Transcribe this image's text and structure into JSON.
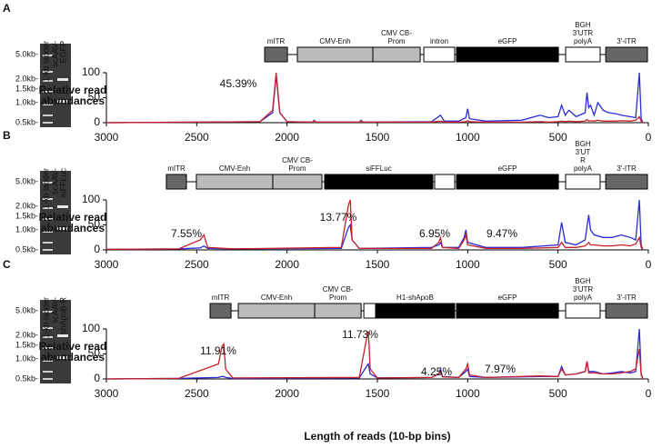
{
  "chart_data": [
    {
      "type": "line",
      "panel": "A",
      "gel": {
        "lanes": [
          [
            "1-kb ladder"
          ],
          [
            "scAAV-",
            "EGFP"
          ]
        ],
        "sizes": [
          "5.0kb-",
          "2.0kb-",
          "1.5kb-",
          "1.0kb-",
          "0.5kb-"
        ]
      },
      "construct": [
        {
          "label": [
            "mITR"
          ],
          "start": 2124,
          "end": 1998,
          "color": "#666666"
        },
        {
          "label": [
            "CMV-Enh"
          ],
          "start": 1943,
          "end": 1525,
          "color": "#bbbbbb"
        },
        {
          "label": [
            "CMV CB-",
            "Prom"
          ],
          "start": 1525,
          "end": 1263,
          "color": "#bbbbbb"
        },
        {
          "label": [
            "intron"
          ],
          "start": 1243,
          "end": 1072,
          "color": "#ffffff"
        },
        {
          "label": [
            "eGFP"
          ],
          "start": 1062,
          "end": 498,
          "color": "#000000"
        },
        {
          "label": [
            "BGH",
            "3'UTR",
            "polyA"
          ],
          "start": 458,
          "end": 267,
          "color": "#ffffff"
        },
        {
          "label": [
            "3'-ITR"
          ],
          "start": 236,
          "end": 5,
          "color": "#666666"
        }
      ],
      "ylabel": [
        "Relative read",
        "abundances"
      ],
      "annotations": [
        {
          "text": "45.39%"
        }
      ],
      "x": [
        3000,
        2500,
        2150,
        2080,
        2060,
        2040,
        2000,
        1860,
        1850,
        1840,
        1600,
        1590,
        1580,
        1200,
        1150,
        1130,
        1050,
        1010,
        1000,
        990,
        900,
        700,
        600,
        550,
        500,
        480,
        460,
        440,
        400,
        350,
        340,
        330,
        320,
        300,
        280,
        250,
        220,
        180,
        150,
        100,
        70,
        50,
        40,
        30
      ],
      "series": [
        {
          "color": "#2b2bd9",
          "values": [
            0,
            1,
            2,
            20,
            95,
            20,
            2,
            1,
            5,
            1,
            1,
            5,
            1,
            2,
            15,
            3,
            3,
            10,
            28,
            8,
            3,
            5,
            15,
            10,
            12,
            35,
            15,
            25,
            12,
            20,
            60,
            30,
            35,
            15,
            40,
            25,
            20,
            18,
            15,
            12,
            10,
            100,
            8,
            0
          ]
        },
        {
          "color": "#c8202a",
          "values": [
            0,
            1,
            2,
            25,
            100,
            20,
            2,
            1,
            4,
            1,
            1,
            4,
            1,
            1,
            3,
            1,
            1,
            2,
            4,
            2,
            1,
            1,
            2,
            1,
            2,
            3,
            2,
            3,
            2,
            3,
            6,
            3,
            4,
            3,
            5,
            3,
            3,
            3,
            4,
            3,
            5,
            12,
            3,
            0
          ]
        }
      ],
      "xlim": [
        3000,
        0
      ],
      "xticks": [
        3000,
        2500,
        2000,
        1500,
        1000,
        500,
        0
      ],
      "ylim": [
        0,
        100
      ],
      "yticks": [
        0,
        50,
        100
      ]
    },
    {
      "type": "line",
      "panel": "B",
      "gel": {
        "lanes": [
          [
            "1-kb ladder"
          ],
          [
            "scAAV-",
            "siFFLuc"
          ]
        ],
        "sizes": [
          "5.0kb-",
          "2.0kb-",
          "1.5kb-",
          "1.0kb-",
          "0.5kb-"
        ]
      },
      "construct": [
        {
          "label": [
            "mITR"
          ],
          "start": 2668,
          "end": 2557,
          "color": "#666666"
        },
        {
          "label": [
            "CMV-Enh"
          ],
          "start": 2502,
          "end": 2079,
          "color": "#bbbbbb"
        },
        {
          "label": [
            "CMV CB-",
            "Prom"
          ],
          "start": 2079,
          "end": 1807,
          "color": "#bbbbbb"
        },
        {
          "label": [
            "siFFLuc"
          ],
          "start": 1792,
          "end": 1193,
          "color": "#000000"
        },
        {
          "label": [],
          "start": 1183,
          "end": 1072,
          "color": "#ffffff"
        },
        {
          "label": [
            "eGFP"
          ],
          "start": 1062,
          "end": 498,
          "color": "#000000"
        },
        {
          "label": [
            "BGH",
            "3'UT",
            "R",
            "polyA"
          ],
          "start": 458,
          "end": 267,
          "color": "#ffffff"
        },
        {
          "label": [
            "3'-ITR"
          ],
          "start": 236,
          "end": 5,
          "color": "#666666"
        }
      ],
      "ylabel": [
        "Relative read",
        "abundances"
      ],
      "annotations": [
        {
          "text": "7.55%"
        },
        {
          "text": "13.77%"
        },
        {
          "text": "6.95%"
        },
        {
          "text": "9.47%"
        }
      ],
      "x": [
        3000,
        2600,
        2480,
        2460,
        2440,
        2300,
        1700,
        1660,
        1650,
        1640,
        1600,
        1200,
        1160,
        1150,
        1140,
        1050,
        1020,
        1010,
        1000,
        900,
        700,
        500,
        480,
        460,
        400,
        350,
        330,
        320,
        300,
        250,
        200,
        150,
        100,
        70,
        50,
        40,
        30
      ],
      "series": [
        {
          "color": "#2b2bd9",
          "values": [
            1,
            2,
            4,
            8,
            3,
            2,
            3,
            45,
            50,
            20,
            3,
            5,
            10,
            15,
            5,
            5,
            25,
            40,
            15,
            5,
            5,
            10,
            55,
            15,
            10,
            20,
            70,
            40,
            30,
            25,
            25,
            30,
            25,
            20,
            100,
            10,
            0
          ]
        },
        {
          "color": "#c8202a",
          "values": [
            1,
            2,
            20,
            30,
            5,
            2,
            5,
            90,
            100,
            20,
            3,
            3,
            15,
            25,
            5,
            3,
            20,
            30,
            10,
            3,
            3,
            5,
            15,
            5,
            5,
            8,
            15,
            10,
            10,
            8,
            8,
            10,
            8,
            12,
            25,
            5,
            0
          ]
        }
      ],
      "xlim": [
        3000,
        0
      ],
      "xticks": [
        3000,
        2500,
        2000,
        1500,
        1000,
        500,
        0
      ],
      "ylim": [
        0,
        100
      ],
      "yticks": [
        0,
        50,
        100
      ]
    },
    {
      "type": "line",
      "panel": "C",
      "gel": {
        "lanes": [
          [
            "1-kb ladder"
          ],
          [
            "scAAV-",
            "shApoB-R"
          ]
        ],
        "sizes": [
          "5.0kb-",
          "2.0kb-",
          "1.5kb-",
          "1.0kb-",
          "0.5kb-"
        ]
      },
      "construct": [
        {
          "label": [
            "mITR"
          ],
          "start": 2426,
          "end": 2310,
          "color": "#666666"
        },
        {
          "label": [
            "CMV-Enh"
          ],
          "start": 2270,
          "end": 1847,
          "color": "#bbbbbb"
        },
        {
          "label": [
            "CMV CB-",
            "Prom"
          ],
          "start": 1847,
          "end": 1590,
          "color": "#bbbbbb"
        },
        {
          "label": [],
          "start": 1575,
          "end": 1510,
          "color": "#ffffff"
        },
        {
          "label": [
            "H1-shApoB"
          ],
          "start": 1510,
          "end": 1072,
          "color": "#000000"
        },
        {
          "label": [
            "eGFP"
          ],
          "start": 1062,
          "end": 498,
          "color": "#000000"
        },
        {
          "label": [
            "BGH",
            "3'UTR",
            "polyA"
          ],
          "start": 458,
          "end": 267,
          "color": "#ffffff"
        },
        {
          "label": [
            "3'-ITR"
          ],
          "start": 236,
          "end": 5,
          "color": "#666666"
        }
      ],
      "ylabel": [
        "Relative read",
        "abundances"
      ],
      "xlabel": "Length of reads (10-bp bins)",
      "annotations": [
        {
          "text": "11.91%"
        },
        {
          "text": "11.73%"
        },
        {
          "text": "4.25%"
        },
        {
          "text": "7.97%"
        }
      ],
      "x": [
        3000,
        2600,
        2380,
        2360,
        2350,
        2340,
        2300,
        1600,
        1560,
        1550,
        1540,
        1500,
        1200,
        1160,
        1150,
        1140,
        1050,
        1010,
        1000,
        990,
        900,
        600,
        500,
        480,
        460,
        400,
        350,
        340,
        330,
        300,
        250,
        200,
        150,
        100,
        70,
        50,
        40,
        30
      ],
      "series": [
        {
          "color": "#2b2bd9",
          "values": [
            0,
            1,
            3,
            5,
            5,
            3,
            1,
            2,
            25,
            30,
            10,
            2,
            3,
            10,
            20,
            5,
            3,
            15,
            20,
            5,
            3,
            5,
            5,
            25,
            8,
            10,
            15,
            35,
            15,
            15,
            10,
            12,
            15,
            12,
            15,
            100,
            10,
            0
          ]
        },
        {
          "color": "#c8202a",
          "values": [
            0,
            1,
            30,
            65,
            70,
            20,
            2,
            3,
            80,
            95,
            20,
            2,
            3,
            10,
            15,
            4,
            3,
            20,
            30,
            8,
            3,
            6,
            5,
            20,
            8,
            10,
            15,
            35,
            12,
            12,
            10,
            10,
            12,
            15,
            20,
            60,
            8,
            0
          ]
        }
      ],
      "xlim": [
        3000,
        0
      ],
      "xticks": [
        3000,
        2500,
        2000,
        1500,
        1000,
        500,
        0
      ],
      "ylim": [
        0,
        100
      ],
      "yticks": [
        0,
        50,
        100
      ]
    }
  ]
}
